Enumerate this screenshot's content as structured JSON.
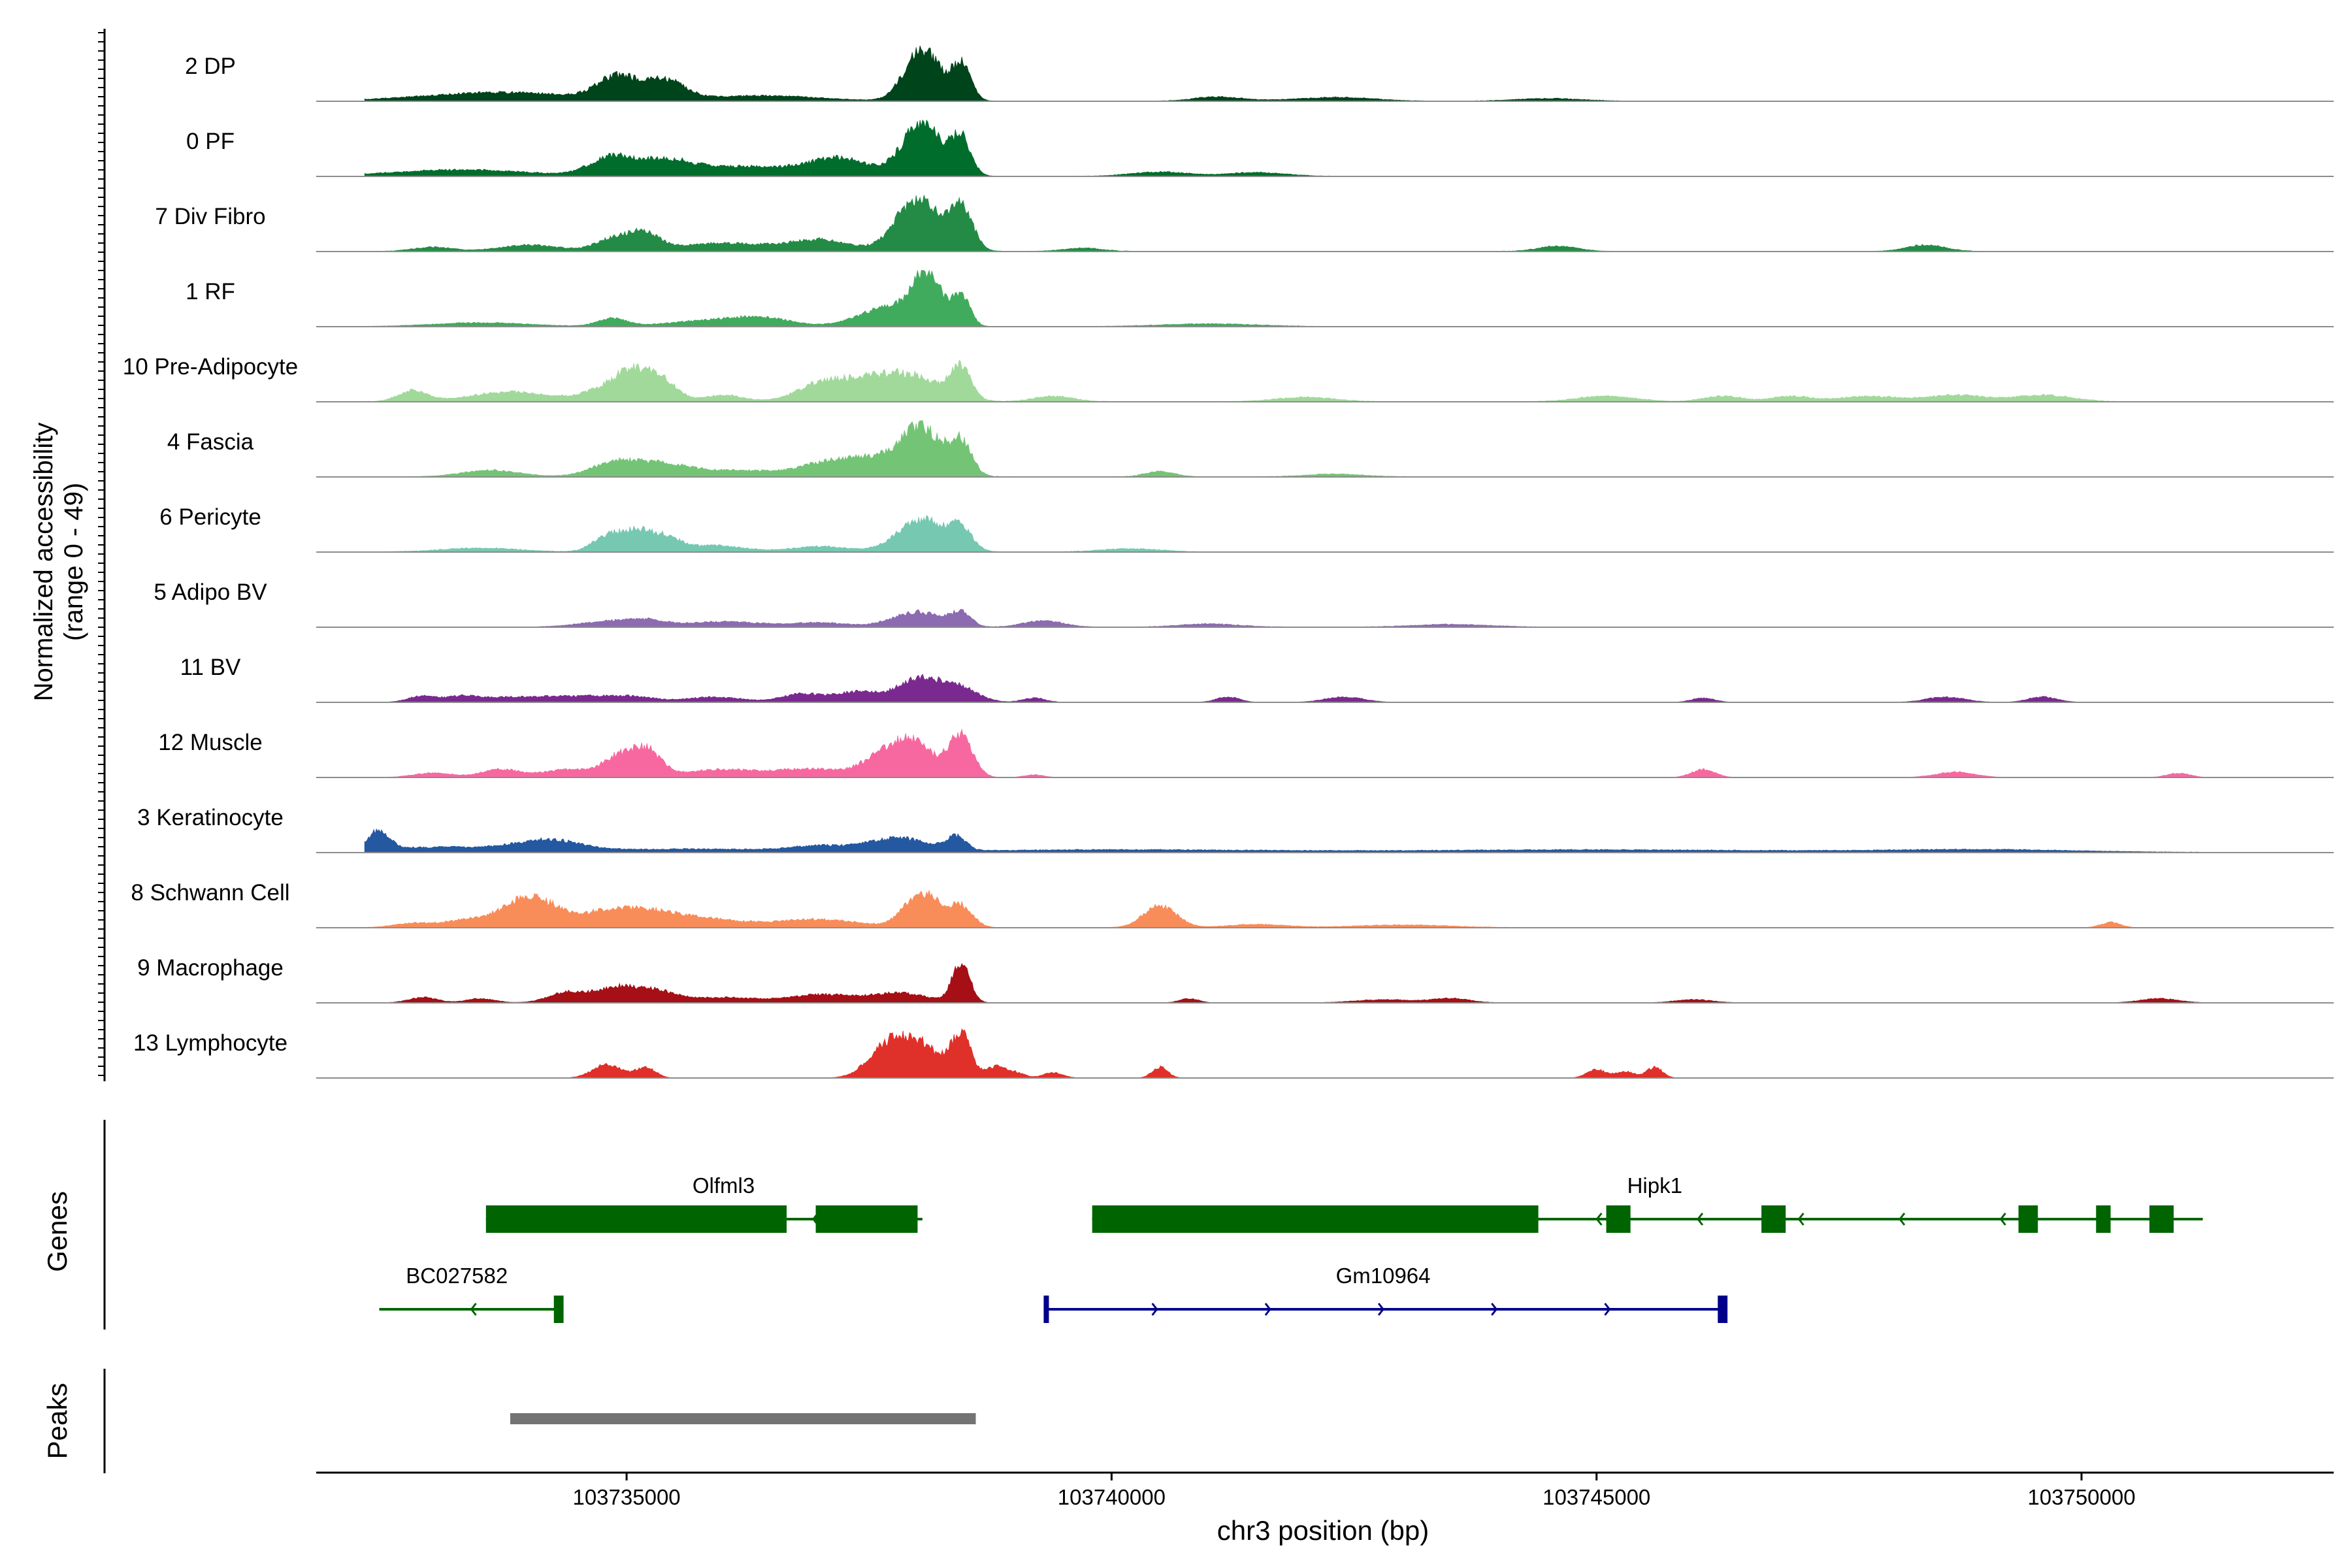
{
  "chart_data": {
    "type": "area",
    "title": "",
    "y_axis": {
      "label_line1": "Normalized accessibility",
      "label_line2": "(range 0 - 49)",
      "range": [
        0,
        49
      ]
    },
    "x_axis": {
      "label": "chr3 position (bp)",
      "range": [
        103731800,
        103752600
      ],
      "ticks": [
        103735000,
        103740000,
        103745000,
        103750000
      ],
      "tick_labels": [
        "103735000",
        "103740000",
        "103745000",
        "103750000"
      ]
    },
    "tracks": [
      {
        "name": "2 DP",
        "color": "#00441b",
        "base": 0.25,
        "peaks": [
          [
            103733700,
            800,
            0.16
          ],
          [
            103734900,
            200,
            0.42
          ],
          [
            103735400,
            200,
            0.36
          ],
          [
            103736400,
            600,
            0.1
          ],
          [
            103738050,
            180,
            0.95
          ],
          [
            103738450,
            100,
            0.65
          ],
          [
            103741100,
            250,
            0.08
          ],
          [
            103742300,
            400,
            0.07
          ],
          [
            103744500,
            350,
            0.05
          ]
        ]
      },
      {
        "name": "0 PF",
        "color": "#006d2c",
        "base": 0.3,
        "peaks": [
          [
            103733300,
            700,
            0.12
          ],
          [
            103734850,
            220,
            0.35
          ],
          [
            103735400,
            250,
            0.25
          ],
          [
            103736200,
            600,
            0.18
          ],
          [
            103737200,
            300,
            0.3
          ],
          [
            103738050,
            200,
            1.0
          ],
          [
            103738450,
            100,
            0.65
          ],
          [
            103740500,
            300,
            0.08
          ],
          [
            103741500,
            300,
            0.07
          ]
        ]
      },
      {
        "name": "7 Div Fibro",
        "color": "#238b45",
        "base": 0.35,
        "peaks": [
          [
            103733000,
            200,
            0.08
          ],
          [
            103734000,
            300,
            0.12
          ],
          [
            103734900,
            200,
            0.25
          ],
          [
            103735200,
            150,
            0.25
          ],
          [
            103736000,
            500,
            0.15
          ],
          [
            103737000,
            300,
            0.2
          ],
          [
            103738000,
            220,
            1.0
          ],
          [
            103738450,
            120,
            0.75
          ],
          [
            103739700,
            200,
            0.06
          ],
          [
            103744600,
            200,
            0.1
          ],
          [
            103748400,
            200,
            0.12
          ]
        ]
      },
      {
        "name": "1 RF",
        "color": "#41ab5d",
        "base": 0.3,
        "peaks": [
          [
            103733500,
            500,
            0.07
          ],
          [
            103734850,
            150,
            0.15
          ],
          [
            103735800,
            400,
            0.1
          ],
          [
            103736400,
            300,
            0.15
          ],
          [
            103737700,
            300,
            0.35
          ],
          [
            103738100,
            150,
            0.9
          ],
          [
            103738450,
            90,
            0.55
          ],
          [
            103741000,
            500,
            0.05
          ]
        ]
      },
      {
        "name": "10 Pre-Adipocyte",
        "color": "#a1d99b",
        "base": 0.4,
        "peaks": [
          [
            103732800,
            150,
            0.2
          ],
          [
            103733800,
            400,
            0.18
          ],
          [
            103734800,
            250,
            0.2
          ],
          [
            103735100,
            200,
            0.5
          ],
          [
            103735400,
            150,
            0.25
          ],
          [
            103736000,
            200,
            0.12
          ],
          [
            103737000,
            250,
            0.3
          ],
          [
            103737500,
            300,
            0.35
          ],
          [
            103738000,
            300,
            0.4
          ],
          [
            103738450,
            100,
            0.55
          ],
          [
            103739400,
            200,
            0.1
          ],
          [
            103742000,
            300,
            0.08
          ],
          [
            103745100,
            300,
            0.1
          ],
          [
            103746300,
            200,
            0.1
          ],
          [
            103747000,
            200,
            0.1
          ],
          [
            103747800,
            300,
            0.1
          ],
          [
            103748700,
            300,
            0.12
          ],
          [
            103749600,
            300,
            0.12
          ]
        ]
      },
      {
        "name": "4 Fascia",
        "color": "#74c476",
        "base": 0.35,
        "peaks": [
          [
            103733600,
            300,
            0.12
          ],
          [
            103734900,
            250,
            0.28
          ],
          [
            103735400,
            250,
            0.2
          ],
          [
            103736100,
            400,
            0.12
          ],
          [
            103737000,
            300,
            0.15
          ],
          [
            103737600,
            400,
            0.35
          ],
          [
            103738050,
            200,
            0.75
          ],
          [
            103738450,
            110,
            0.6
          ],
          [
            103740500,
            150,
            0.1
          ],
          [
            103742300,
            300,
            0.05
          ]
        ]
      },
      {
        "name": "6 Pericyte",
        "color": "#76c8b1",
        "base": 0.35,
        "peaks": [
          [
            103733500,
            400,
            0.07
          ],
          [
            103734800,
            150,
            0.28
          ],
          [
            103735100,
            150,
            0.36
          ],
          [
            103735400,
            150,
            0.25
          ],
          [
            103735900,
            300,
            0.12
          ],
          [
            103737000,
            300,
            0.1
          ],
          [
            103738050,
            250,
            0.6
          ],
          [
            103738450,
            110,
            0.35
          ],
          [
            103740200,
            300,
            0.06
          ]
        ]
      },
      {
        "name": "5 Adipo BV",
        "color": "#8c6bb1",
        "base": 0.3,
        "peaks": [
          [
            103734800,
            300,
            0.1
          ],
          [
            103735200,
            200,
            0.1
          ],
          [
            103736000,
            400,
            0.1
          ],
          [
            103737000,
            300,
            0.08
          ],
          [
            103738000,
            250,
            0.28
          ],
          [
            103738450,
            100,
            0.25
          ],
          [
            103739300,
            200,
            0.12
          ],
          [
            103741000,
            300,
            0.06
          ],
          [
            103743500,
            400,
            0.05
          ]
        ]
      },
      {
        "name": "11 BV",
        "color": "#7a2a8f",
        "base": 0.0,
        "peaks": [
          [
            103732900,
            150,
            0.12
          ],
          [
            103733300,
            150,
            0.1
          ],
          [
            103733800,
            300,
            0.1
          ],
          [
            103734300,
            200,
            0.08
          ],
          [
            103734700,
            200,
            0.1
          ],
          [
            103735100,
            200,
            0.1
          ],
          [
            103735900,
            300,
            0.1
          ],
          [
            103736800,
            200,
            0.15
          ],
          [
            103737400,
            250,
            0.2
          ],
          [
            103738000,
            200,
            0.4
          ],
          [
            103738400,
            200,
            0.3
          ],
          [
            103739200,
            120,
            0.08
          ],
          [
            103741200,
            120,
            0.1
          ],
          [
            103742400,
            200,
            0.1
          ],
          [
            103746100,
            120,
            0.08
          ],
          [
            103748600,
            200,
            0.1
          ],
          [
            103749600,
            150,
            0.1
          ]
        ]
      },
      {
        "name": "12 Muscle",
        "color": "#f768a1",
        "base": 0.0,
        "peaks": [
          [
            103733000,
            200,
            0.08
          ],
          [
            103733700,
            200,
            0.15
          ],
          [
            103734400,
            250,
            0.15
          ],
          [
            103734900,
            150,
            0.35
          ],
          [
            103735200,
            150,
            0.5
          ],
          [
            103736000,
            400,
            0.15
          ],
          [
            103736900,
            300,
            0.15
          ],
          [
            103737500,
            200,
            0.15
          ],
          [
            103737900,
            250,
            0.7
          ],
          [
            103738450,
            120,
            0.75
          ],
          [
            103739200,
            100,
            0.05
          ],
          [
            103746100,
            120,
            0.15
          ],
          [
            103748700,
            200,
            0.1
          ],
          [
            103751000,
            120,
            0.08
          ]
        ]
      },
      {
        "name": "3 Keratinocyte",
        "color": "#2458a0",
        "base": 0.25,
        "peaks": [
          [
            103732450,
            100,
            0.35
          ],
          [
            103733200,
            1000,
            0.1
          ],
          [
            103734200,
            300,
            0.18
          ],
          [
            103735800,
            800,
            0.06
          ],
          [
            103737000,
            300,
            0.1
          ],
          [
            103737800,
            300,
            0.25
          ],
          [
            103738400,
            100,
            0.25
          ],
          [
            103740000,
            1500,
            0.05
          ],
          [
            103745000,
            2000,
            0.05
          ],
          [
            103749000,
            1000,
            0.05
          ]
        ]
      },
      {
        "name": "8 Schwann Cell",
        "color": "#f88d5a",
        "base": 0.2,
        "peaks": [
          [
            103732800,
            200,
            0.08
          ],
          [
            103733400,
            250,
            0.15
          ],
          [
            103734000,
            250,
            0.55
          ],
          [
            103734800,
            400,
            0.25
          ],
          [
            103735300,
            400,
            0.2
          ],
          [
            103736000,
            400,
            0.1
          ],
          [
            103737000,
            400,
            0.15
          ],
          [
            103738050,
            180,
            0.65
          ],
          [
            103738450,
            120,
            0.38
          ],
          [
            103740500,
            170,
            0.4
          ],
          [
            103741500,
            300,
            0.06
          ],
          [
            103743000,
            500,
            0.05
          ],
          [
            103750300,
            100,
            0.1
          ]
        ]
      },
      {
        "name": "9 Macrophage",
        "color": "#a50f15",
        "base": 0.0,
        "peaks": [
          [
            103732900,
            150,
            0.1
          ],
          [
            103733500,
            150,
            0.08
          ],
          [
            103734400,
            200,
            0.2
          ],
          [
            103734900,
            200,
            0.28
          ],
          [
            103735300,
            200,
            0.2
          ],
          [
            103736000,
            400,
            0.1
          ],
          [
            103737000,
            300,
            0.15
          ],
          [
            103737800,
            300,
            0.18
          ],
          [
            103738450,
            90,
            0.75
          ],
          [
            103740800,
            100,
            0.08
          ],
          [
            103742800,
            300,
            0.06
          ],
          [
            103743500,
            200,
            0.08
          ],
          [
            103746000,
            200,
            0.06
          ],
          [
            103750800,
            200,
            0.08
          ]
        ]
      },
      {
        "name": "13 Lymphocyte",
        "color": "#e0302a",
        "base": 0.0,
        "peaks": [
          [
            103734800,
            150,
            0.25
          ],
          [
            103735200,
            100,
            0.2
          ],
          [
            103737700,
            200,
            0.6
          ],
          [
            103738050,
            200,
            0.55
          ],
          [
            103738450,
            100,
            0.8
          ],
          [
            103738800,
            100,
            0.2
          ],
          [
            103739000,
            100,
            0.1
          ],
          [
            103739400,
            100,
            0.1
          ],
          [
            103740500,
            80,
            0.2
          ],
          [
            103745000,
            100,
            0.15
          ],
          [
            103745300,
            100,
            0.12
          ],
          [
            103745600,
            80,
            0.2
          ]
        ]
      }
    ],
    "genes_panel": {
      "label": "Genes",
      "genes": [
        {
          "name": "Olfml3",
          "start": 103733550,
          "end": 103738050,
          "strand": "-",
          "color": "#006400",
          "exons": [
            [
              103733550,
              103736650
            ],
            [
              103736950,
              103738000
            ]
          ]
        },
        {
          "name": "Hipk1",
          "start": 103739800,
          "end": 103751250,
          "strand": "-",
          "color": "#006400",
          "exons": [
            [
              103739800,
              103744400
            ],
            [
              103745100,
              103745350
            ],
            [
              103746700,
              103746950
            ],
            [
              103749350,
              103749550
            ],
            [
              103750150,
              103750300
            ],
            [
              103750700,
              103750950
            ]
          ]
        },
        {
          "name": "BC027582",
          "start": 103732450,
          "end": 103734350,
          "strand": "-",
          "color": "#006400",
          "exons": [
            [
              103734250,
              103734350
            ]
          ]
        },
        {
          "name": "Gm10964",
          "start": 103739300,
          "end": 103746300,
          "strand": "+",
          "color": "#00008b",
          "exons": [
            [
              103739300,
              103739330
            ],
            [
              103746250,
              103746350
            ]
          ]
        }
      ]
    },
    "peaks_panel": {
      "label": "Peaks",
      "regions": [
        [
          103733800,
          103738600
        ]
      ],
      "color": "#737373"
    }
  }
}
